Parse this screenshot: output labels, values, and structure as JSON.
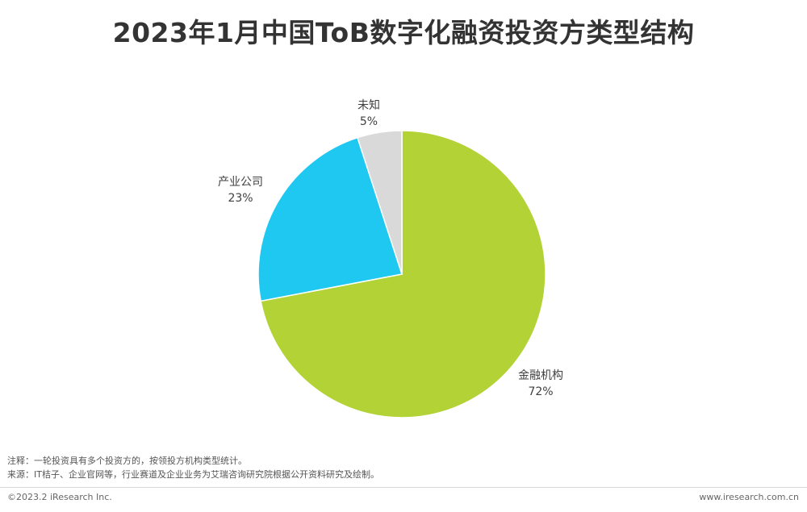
{
  "page": {
    "title": "2023年1月中国ToB数字化融资投资方类型结构",
    "note_line_1": "注释：一轮投资具有多个投资方的，按领投方机构类型统计。",
    "note_line_2": "来源：IT桔子、企业官网等，行业赛道及企业业务为艾瑞咨询研究院根据公开资料研究及绘制。",
    "copyright": "©2023.2 iResearch Inc.",
    "website": "www.iresearch.com.cn"
  },
  "chart_data": {
    "type": "pie",
    "title": "2023年1月中国ToB数字化融资投资方类型结构",
    "unit": "%",
    "slices": [
      {
        "label": "金融机构",
        "value": 72,
        "value_label": "72%",
        "color": "#b2d235"
      },
      {
        "label": "产业公司",
        "value": 23,
        "value_label": "23%",
        "color": "#1ec8f0"
      },
      {
        "label": "未知",
        "value": 5,
        "value_label": "5%",
        "color": "#d9d9d9"
      }
    ],
    "start_angle": "12 o'clock",
    "direction": "clockwise",
    "legend": "none"
  }
}
